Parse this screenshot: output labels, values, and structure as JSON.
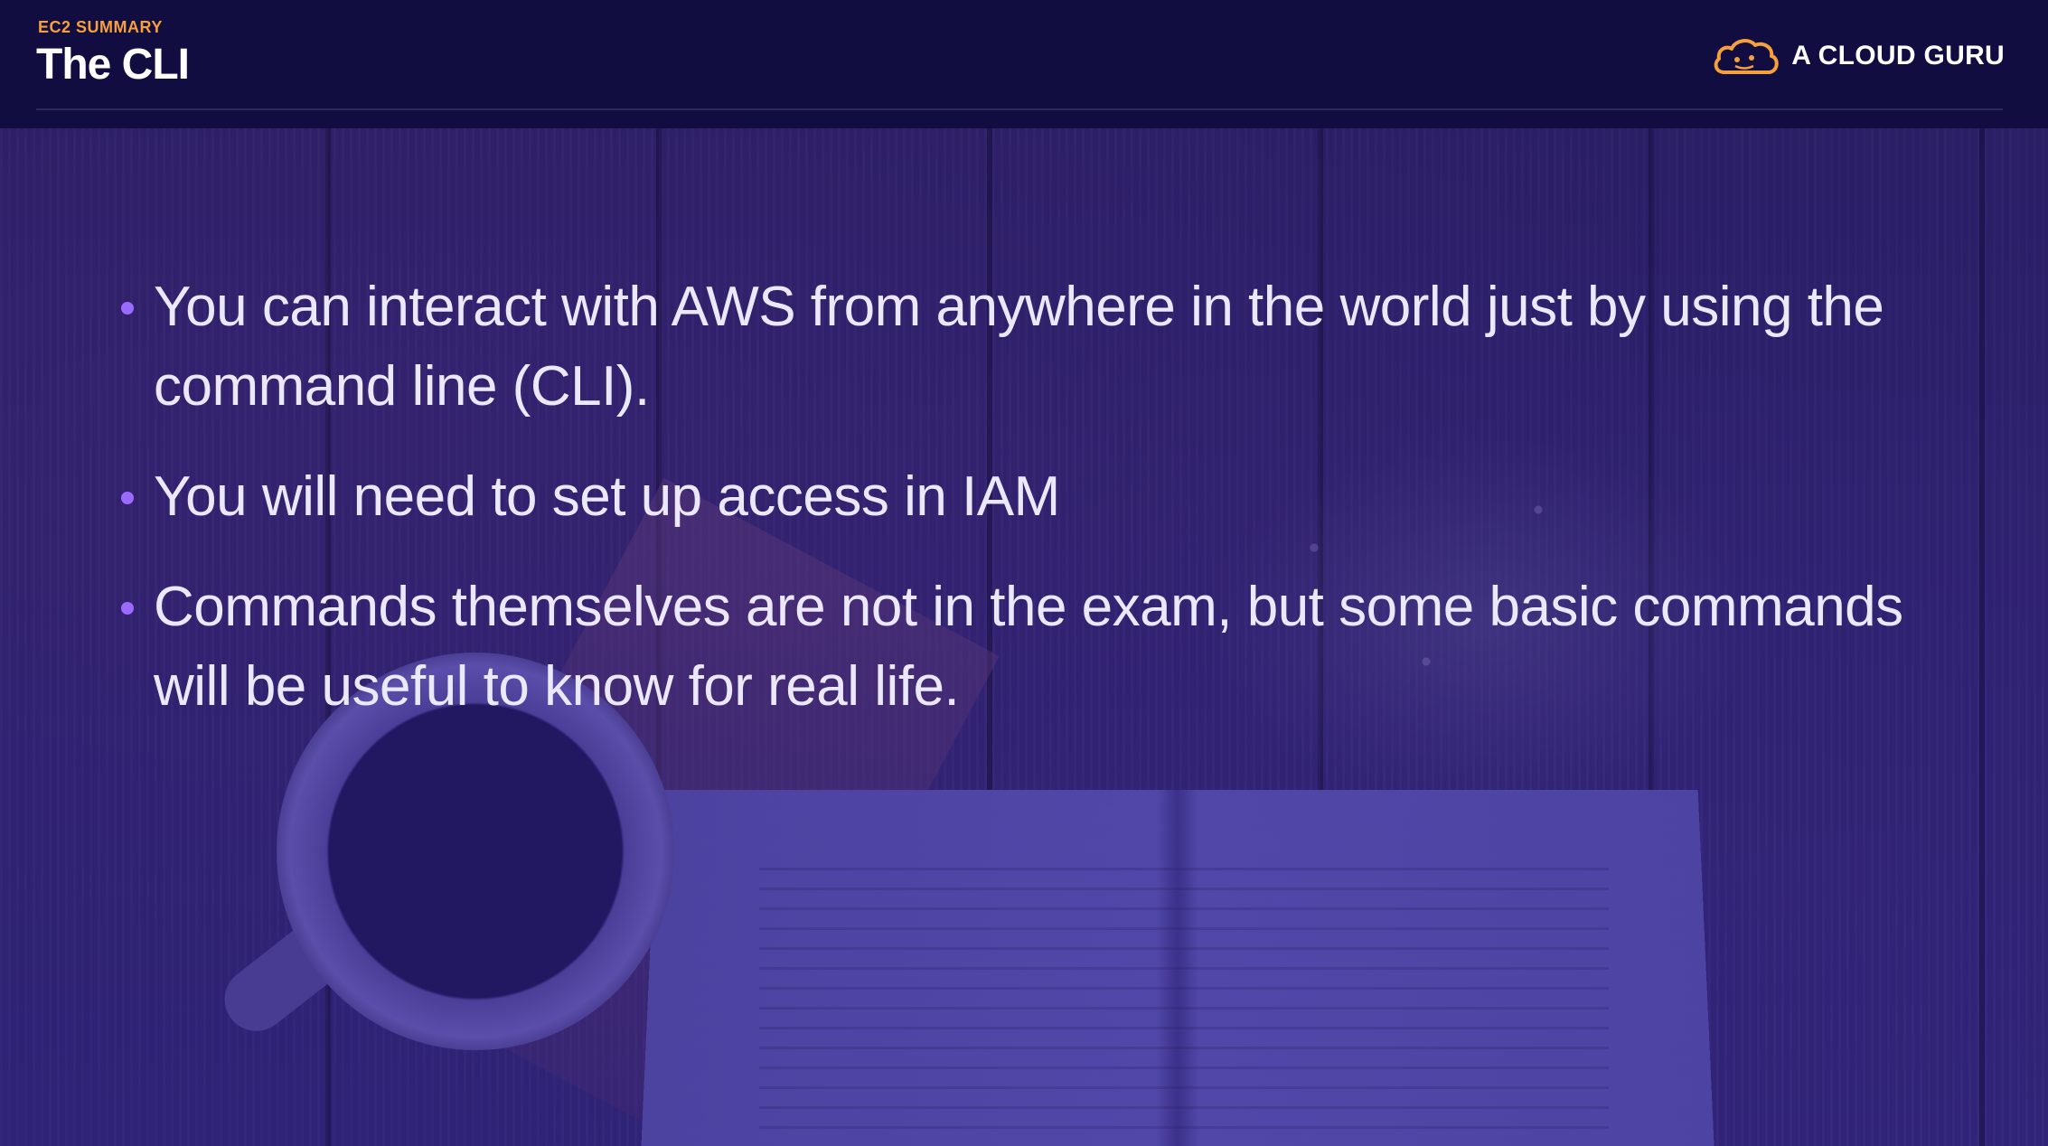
{
  "header": {
    "eyebrow": "EC2 SUMMARY",
    "title": "The CLI",
    "brand": {
      "name": "A CLOUD GURU",
      "icon": "cloud-icon",
      "icon_color": "#f5a03a"
    }
  },
  "bullets": [
    "You can interact with AWS from anywhere in the world just by using the command line (CLI).",
    "You will need to set up access in IAM",
    "Commands themselves are not in the exam, but some basic commands will be useful to know for real life."
  ],
  "colors": {
    "header_bg": "#110d40",
    "accent_orange": "#f5a03a",
    "bullet_dot": "#9b6bff",
    "text": "#ece8fb"
  }
}
